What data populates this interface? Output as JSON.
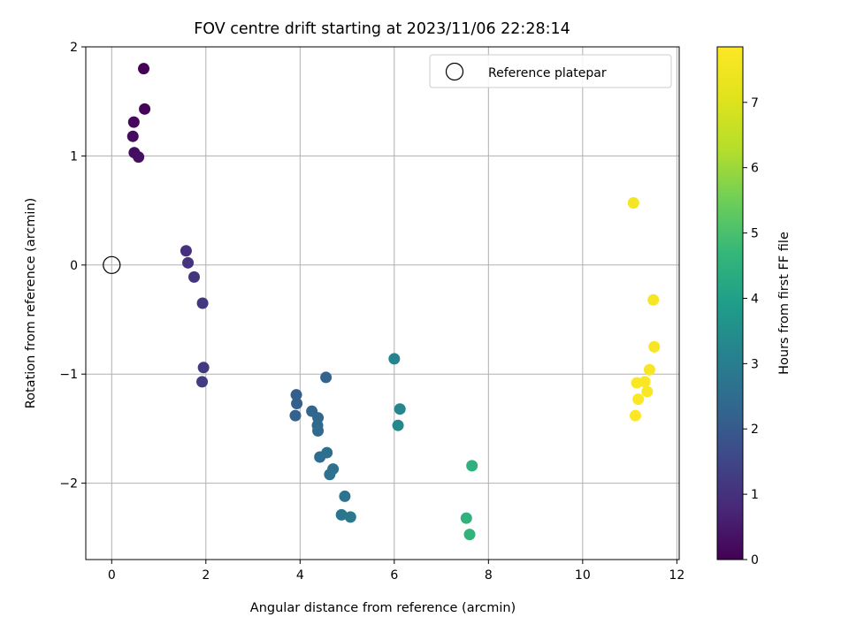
{
  "chart_data": {
    "type": "scatter",
    "title": "FOV centre drift starting at 2023/11/06 22:28:14",
    "xlabel": "Angular distance from reference (arcmin)",
    "ylabel": "Rotation from reference (arcmin)",
    "xlim": [
      -0.55,
      12.05
    ],
    "ylim": [
      -2.7,
      2.0
    ],
    "xticks": [
      0,
      2,
      4,
      6,
      8,
      10,
      12
    ],
    "yticks": [
      -2,
      -1,
      0,
      1,
      2
    ],
    "xtick_labels": [
      "0",
      "2",
      "4",
      "6",
      "8",
      "10",
      "12"
    ],
    "ytick_labels": [
      "−2",
      "−1",
      "0",
      "1",
      "2"
    ],
    "grid": true,
    "legend": {
      "placement": "top-right",
      "label": "Reference platepar"
    },
    "reference_point": {
      "x": 0,
      "y": 0
    },
    "colorbar": {
      "label": "Hours from first FF file",
      "range": [
        0,
        7.85
      ],
      "ticks": [
        0,
        1,
        2,
        3,
        4,
        5,
        6,
        7
      ],
      "tick_labels": [
        "0",
        "1",
        "2",
        "3",
        "4",
        "5",
        "6",
        "7"
      ],
      "colormap": "viridis"
    },
    "points": [
      {
        "x": 0.68,
        "y": 1.8,
        "hours": 0.05
      },
      {
        "x": 0.7,
        "y": 1.43,
        "hours": 0.1
      },
      {
        "x": 0.47,
        "y": 1.31,
        "hours": 0.15
      },
      {
        "x": 0.45,
        "y": 1.18,
        "hours": 0.2
      },
      {
        "x": 0.48,
        "y": 1.03,
        "hours": 0.25
      },
      {
        "x": 0.57,
        "y": 0.99,
        "hours": 0.3
      },
      {
        "x": 1.58,
        "y": 0.13,
        "hours": 1.0
      },
      {
        "x": 1.62,
        "y": 0.02,
        "hours": 1.05
      },
      {
        "x": 1.75,
        "y": -0.11,
        "hours": 1.1
      },
      {
        "x": 1.93,
        "y": -0.35,
        "hours": 1.15
      },
      {
        "x": 1.95,
        "y": -0.94,
        "hours": 1.2
      },
      {
        "x": 1.92,
        "y": -1.07,
        "hours": 1.25
      },
      {
        "x": 3.92,
        "y": -1.19,
        "hours": 2.1
      },
      {
        "x": 3.93,
        "y": -1.27,
        "hours": 2.15
      },
      {
        "x": 3.9,
        "y": -1.38,
        "hours": 2.2
      },
      {
        "x": 4.55,
        "y": -1.03,
        "hours": 2.25
      },
      {
        "x": 4.25,
        "y": -1.34,
        "hours": 2.3
      },
      {
        "x": 4.38,
        "y": -1.4,
        "hours": 2.35
      },
      {
        "x": 4.37,
        "y": -1.47,
        "hours": 2.4
      },
      {
        "x": 4.38,
        "y": -1.52,
        "hours": 2.45
      },
      {
        "x": 4.42,
        "y": -1.76,
        "hours": 2.5
      },
      {
        "x": 4.57,
        "y": -1.72,
        "hours": 2.55
      },
      {
        "x": 4.7,
        "y": -1.87,
        "hours": 2.6
      },
      {
        "x": 4.63,
        "y": -1.92,
        "hours": 2.65
      },
      {
        "x": 4.95,
        "y": -2.12,
        "hours": 2.7
      },
      {
        "x": 4.88,
        "y": -2.29,
        "hours": 2.75
      },
      {
        "x": 5.07,
        "y": -2.31,
        "hours": 2.8
      },
      {
        "x": 6.0,
        "y": -0.86,
        "hours": 3.2
      },
      {
        "x": 6.12,
        "y": -1.32,
        "hours": 3.25
      },
      {
        "x": 6.08,
        "y": -1.47,
        "hours": 3.3
      },
      {
        "x": 7.65,
        "y": -1.84,
        "hours": 4.5
      },
      {
        "x": 7.53,
        "y": -2.32,
        "hours": 4.55
      },
      {
        "x": 7.6,
        "y": -2.47,
        "hours": 4.6
      },
      {
        "x": 11.08,
        "y": 0.57,
        "hours": 7.6
      },
      {
        "x": 11.5,
        "y": -0.32,
        "hours": 7.65
      },
      {
        "x": 11.52,
        "y": -0.75,
        "hours": 7.7
      },
      {
        "x": 11.42,
        "y": -0.96,
        "hours": 7.72
      },
      {
        "x": 11.32,
        "y": -1.07,
        "hours": 7.74
      },
      {
        "x": 11.15,
        "y": -1.08,
        "hours": 7.76
      },
      {
        "x": 11.37,
        "y": -1.16,
        "hours": 7.78
      },
      {
        "x": 11.18,
        "y": -1.23,
        "hours": 7.8
      },
      {
        "x": 11.12,
        "y": -1.38,
        "hours": 7.85
      }
    ]
  }
}
